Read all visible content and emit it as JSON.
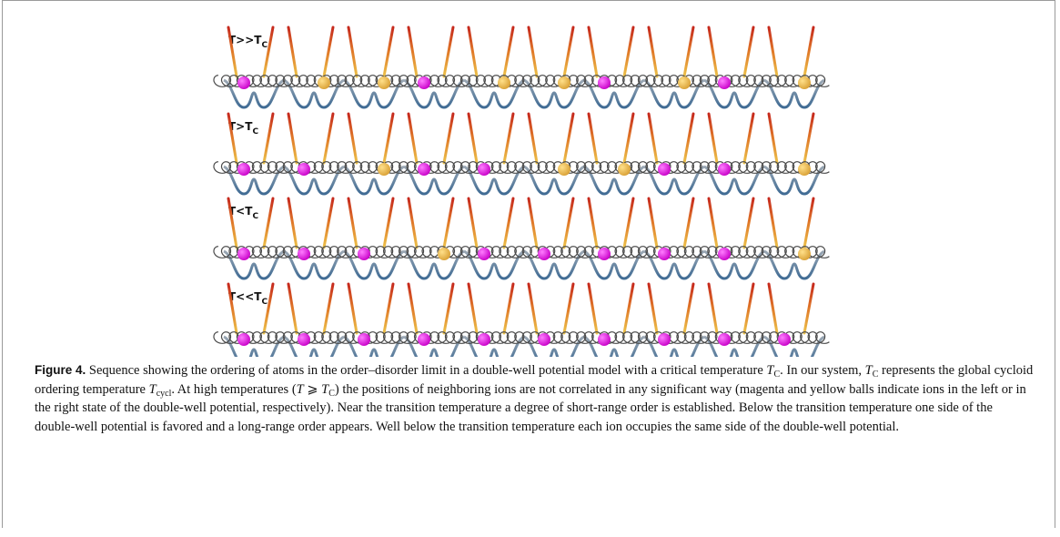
{
  "figure": {
    "panels": [
      {
        "label": "T>>T",
        "label_sub": "C"
      },
      {
        "label": "T>T",
        "label_sub": "C"
      },
      {
        "label": "T<T",
        "label_sub": "C"
      },
      {
        "label": "T<<T",
        "label_sub": "C"
      }
    ],
    "caption": {
      "parts": [
        "Figure 4.",
        " Sequence showing the ordering of atoms in the order–disorder limit in a double-well potential model with a critical temperature ",
        "T",
        "C",
        ". In our system, ",
        "T",
        "C",
        " represents the global cycloid ordering temperature ",
        "T",
        "cycl",
        ". At high temperatures (",
        "T",
        " ⩾ ",
        "T",
        "C",
        ") the positions of neighboring ions are not correlated in any significant way (magenta and yellow balls indicate ions in the left or in the right state of the double-well potential, respectively). Near the transition temperature a degree of short-range order is established. Below the transition temperature one side of the double-well potential is favored and a long-range order appears. Well below the transition temperature each ion occupies the same side of the double-well potential."
      ]
    }
  }
}
